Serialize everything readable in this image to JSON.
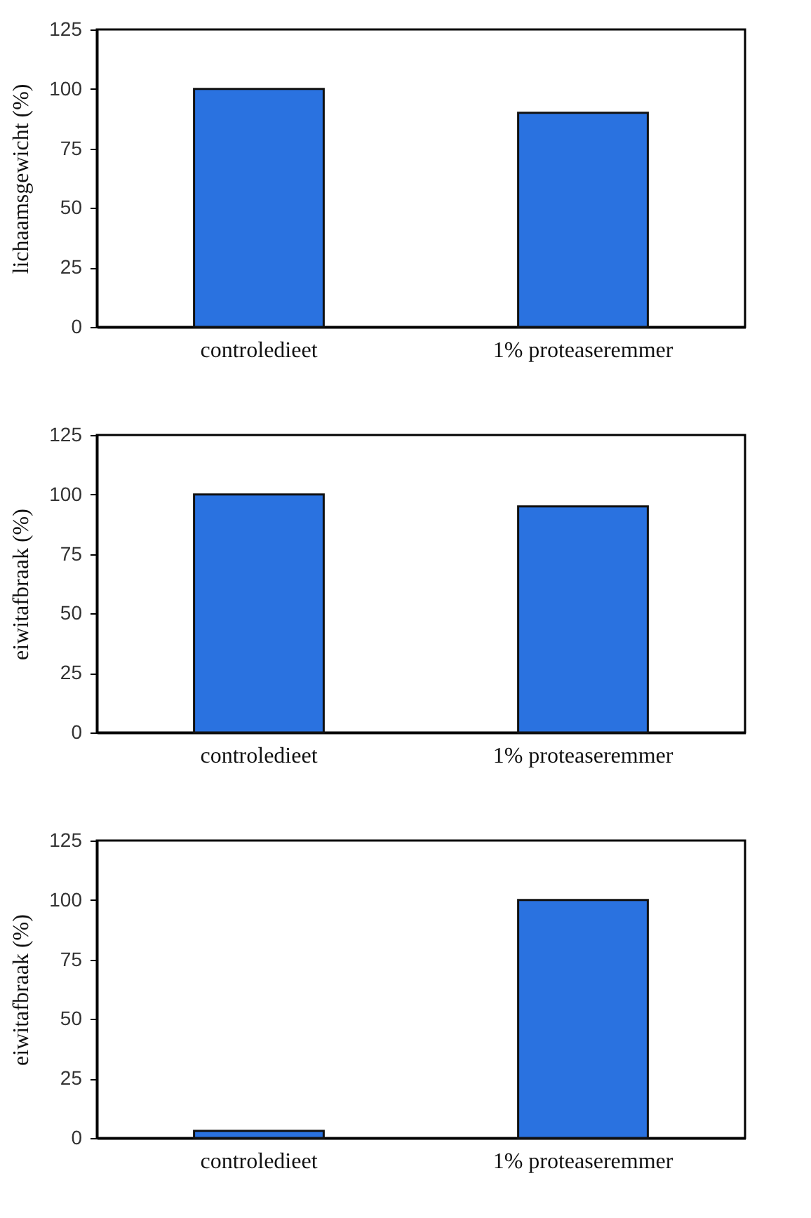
{
  "chart_data": [
    {
      "type": "bar",
      "ylabel": "lichaamsgewicht (%)",
      "categories": [
        "controledieet",
        "1% proteaseremmer"
      ],
      "values": [
        100,
        90
      ],
      "color": "#2a72e0",
      "ylim": [
        0,
        125
      ],
      "yticks": [
        0,
        25,
        50,
        75,
        100,
        125
      ]
    },
    {
      "type": "bar",
      "ylabel": "eiwitafbraak (%)",
      "categories": [
        "controledieet",
        "1% proteaseremmer"
      ],
      "values": [
        100,
        95
      ],
      "color": "#2a72e0",
      "ylim": [
        0,
        125
      ],
      "yticks": [
        0,
        25,
        50,
        75,
        100,
        125
      ]
    },
    {
      "type": "bar",
      "ylabel": "eiwitafbraak (%)",
      "categories": [
        "controledieet",
        "1% proteaseremmer"
      ],
      "values": [
        3,
        100
      ],
      "color": "#2a72e0",
      "ylim": [
        0,
        125
      ],
      "yticks": [
        0,
        25,
        50,
        75,
        100,
        125
      ]
    }
  ]
}
